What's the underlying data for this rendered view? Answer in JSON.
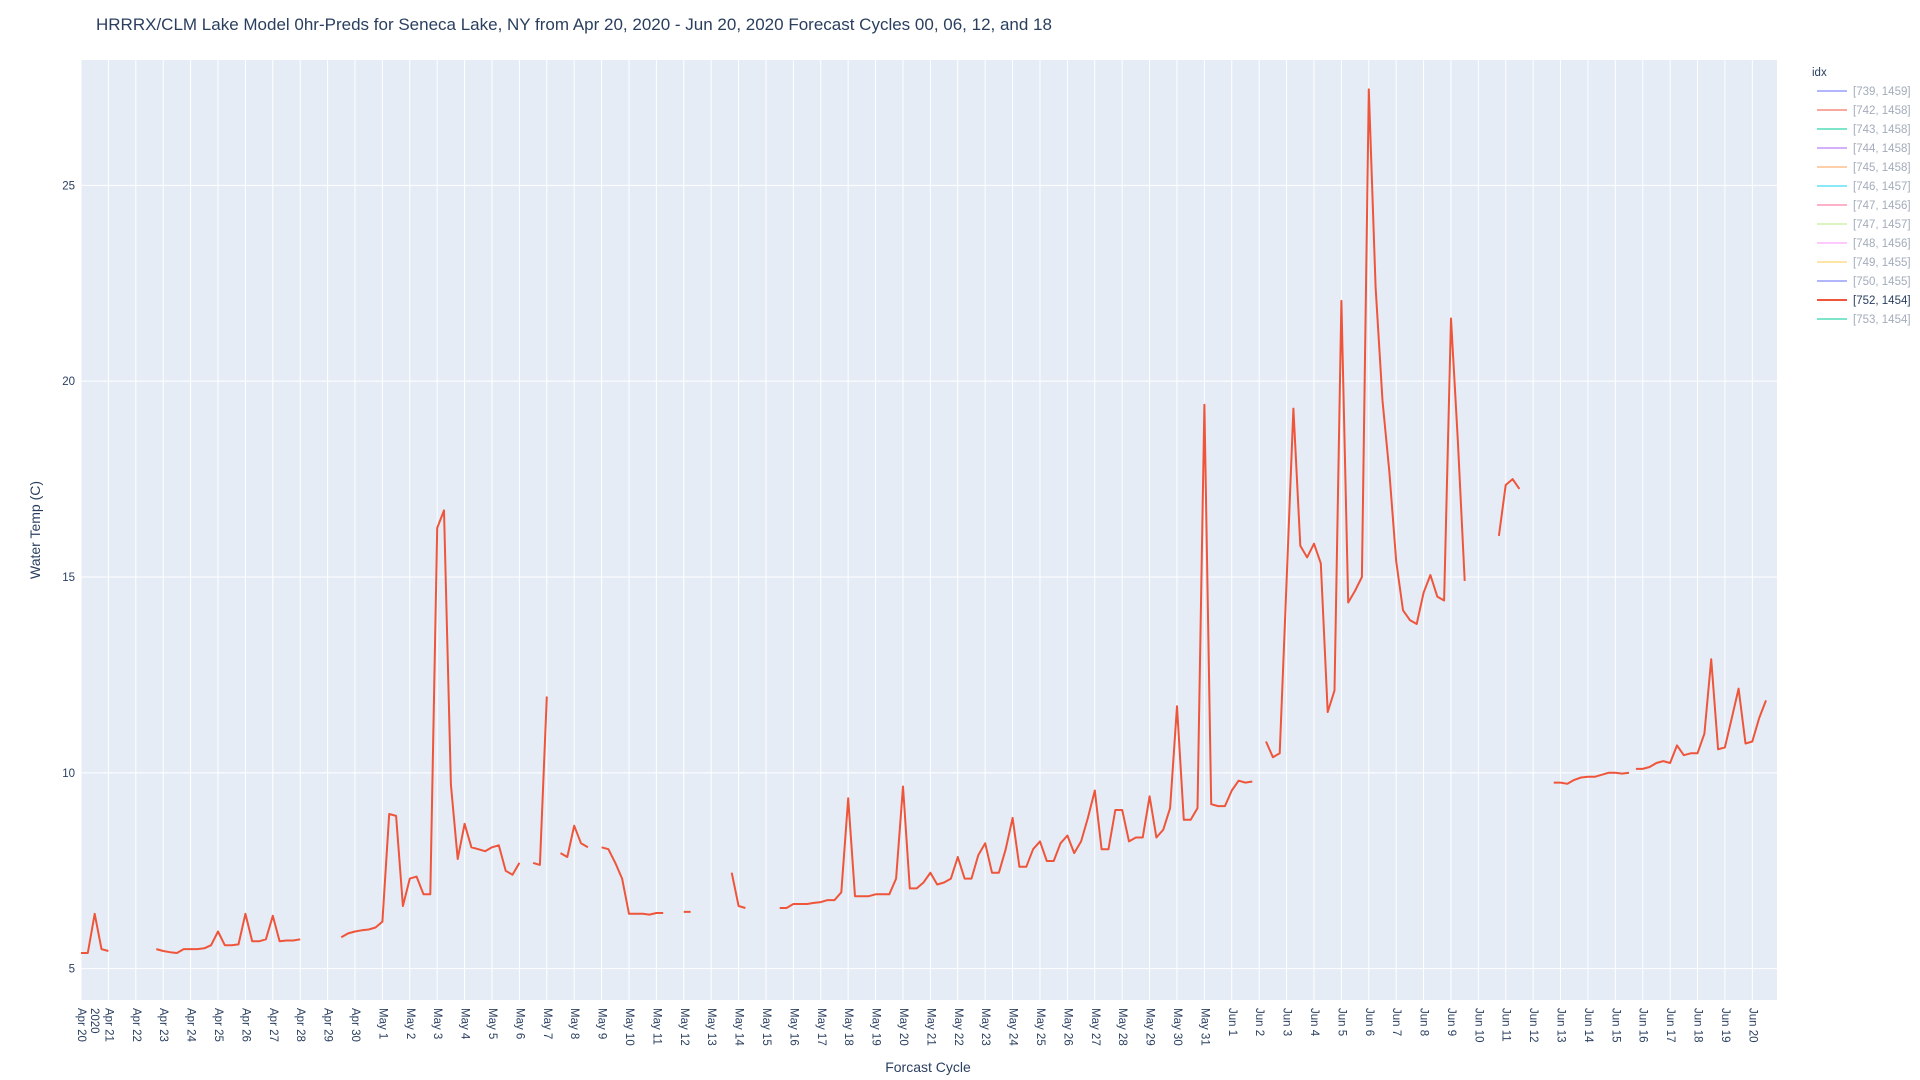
{
  "chart_data": {
    "type": "line",
    "title": "HRRRX/CLM Lake Model 0hr-Preds for Seneca Lake, NY from Apr 20, 2020 - Jun 20, 2020 Forecast Cycles 00, 06, 12, and 18",
    "xlabel": "Forcast Cycle",
    "ylabel": "Water Temp (C)",
    "x_start_date": "2020-04-20",
    "x_range_days": [
      0,
      61.9
    ],
    "ylim": [
      4.2,
      28.2
    ],
    "y_ticks": [
      5,
      10,
      15,
      20,
      25
    ],
    "y_tick_labels": [
      "5",
      "10",
      "15",
      "20",
      "25"
    ],
    "x_tick_labels": [
      "Apr 20\n2020",
      "Apr 21",
      "Apr 22",
      "Apr 23",
      "Apr 24",
      "Apr 25",
      "Apr 26",
      "Apr 27",
      "Apr 28",
      "Apr 29",
      "Apr 30",
      "May 1",
      "May 2",
      "May 3",
      "May 4",
      "May 5",
      "May 6",
      "May 7",
      "May 8",
      "May 9",
      "May 10",
      "May 11",
      "May 12",
      "May 13",
      "May 14",
      "May 15",
      "May 16",
      "May 17",
      "May 18",
      "May 19",
      "May 20",
      "May 21",
      "May 22",
      "May 23",
      "May 24",
      "May 25",
      "May 26",
      "May 27",
      "May 28",
      "May 29",
      "May 30",
      "May 31",
      "Jun 1",
      "Jun 2",
      "Jun 3",
      "Jun 4",
      "Jun 5",
      "Jun 6",
      "Jun 7",
      "Jun 8",
      "Jun 9",
      "Jun 10",
      "Jun 11",
      "Jun 12",
      "Jun 13",
      "Jun 14",
      "Jun 15",
      "Jun 16",
      "Jun 17",
      "Jun 18",
      "Jun 19",
      "Jun 20"
    ],
    "grid": true,
    "legend_title": "idx",
    "legend_position": "top-right",
    "series": [
      {
        "name": "[739, 1459]",
        "color": "#636efa",
        "visible": false,
        "points": []
      },
      {
        "name": "[742, 1458]",
        "color": "#ef553b",
        "visible": false,
        "points": []
      },
      {
        "name": "[743, 1458]",
        "color": "#00cc96",
        "visible": false,
        "points": []
      },
      {
        "name": "[744, 1458]",
        "color": "#ab63fa",
        "visible": false,
        "points": []
      },
      {
        "name": "[745, 1458]",
        "color": "#ffa15a",
        "visible": false,
        "points": []
      },
      {
        "name": "[746, 1457]",
        "color": "#19d3f3",
        "visible": false,
        "points": []
      },
      {
        "name": "[747, 1456]",
        "color": "#ff6692",
        "visible": false,
        "points": []
      },
      {
        "name": "[747, 1457]",
        "color": "#b6e880",
        "visible": false,
        "points": []
      },
      {
        "name": "[748, 1456]",
        "color": "#ff97ff",
        "visible": false,
        "points": []
      },
      {
        "name": "[749, 1455]",
        "color": "#fecb52",
        "visible": false,
        "points": []
      },
      {
        "name": "[750, 1455]",
        "color": "#636efa",
        "visible": false,
        "points": []
      },
      {
        "name": "[752, 1454]",
        "color": "#ef553b",
        "visible": true,
        "points": [
          [
            0.0,
            5.4
          ],
          [
            0.25,
            5.4
          ],
          [
            0.5,
            6.4
          ],
          [
            0.75,
            5.5
          ],
          [
            1.0,
            5.45
          ],
          null,
          [
            2.75,
            5.5
          ],
          [
            3.0,
            5.45
          ],
          [
            3.25,
            5.42
          ],
          [
            3.5,
            5.4
          ],
          [
            3.75,
            5.5
          ],
          [
            4.0,
            5.5
          ],
          [
            4.25,
            5.5
          ],
          [
            4.5,
            5.52
          ],
          [
            4.75,
            5.6
          ],
          [
            5.0,
            5.95
          ],
          [
            5.25,
            5.6
          ],
          [
            5.5,
            5.6
          ],
          [
            5.75,
            5.62
          ],
          [
            6.0,
            6.4
          ],
          [
            6.25,
            5.7
          ],
          [
            6.5,
            5.7
          ],
          [
            6.75,
            5.75
          ],
          [
            7.0,
            6.35
          ],
          [
            7.25,
            5.7
          ],
          [
            7.5,
            5.72
          ],
          [
            7.75,
            5.72
          ],
          [
            8.0,
            5.75
          ],
          null,
          [
            9.5,
            5.8
          ],
          [
            9.75,
            5.9
          ],
          [
            10.0,
            5.95
          ],
          [
            10.25,
            5.98
          ],
          [
            10.5,
            6.0
          ],
          [
            10.75,
            6.05
          ],
          [
            11.0,
            6.2
          ],
          [
            11.25,
            8.95
          ],
          [
            11.5,
            8.9
          ],
          [
            11.75,
            6.6
          ],
          [
            12.0,
            7.3
          ],
          [
            12.25,
            7.35
          ],
          [
            12.5,
            6.9
          ],
          [
            12.75,
            6.9
          ],
          [
            13.0,
            16.25
          ],
          [
            13.25,
            16.7
          ],
          [
            13.5,
            9.7
          ],
          [
            13.75,
            7.8
          ],
          [
            14.0,
            8.7
          ],
          [
            14.25,
            8.1
          ],
          [
            14.5,
            8.05
          ],
          [
            14.75,
            8.0
          ],
          [
            15.0,
            8.1
          ],
          [
            15.25,
            8.15
          ],
          [
            15.5,
            7.5
          ],
          [
            15.75,
            7.4
          ],
          [
            16.0,
            7.7
          ],
          null,
          [
            16.5,
            7.7
          ],
          [
            16.75,
            7.65
          ],
          [
            17.0,
            11.95
          ],
          null,
          [
            17.5,
            7.95
          ],
          [
            17.75,
            7.85
          ],
          [
            18.0,
            8.65
          ],
          [
            18.25,
            8.2
          ],
          [
            18.5,
            8.1
          ],
          null,
          [
            19.0,
            8.1
          ],
          [
            19.25,
            8.05
          ],
          [
            19.5,
            7.7
          ],
          [
            19.75,
            7.3
          ],
          [
            20.0,
            6.4
          ],
          [
            20.25,
            6.4
          ],
          [
            20.5,
            6.4
          ],
          [
            20.75,
            6.38
          ],
          [
            21.0,
            6.42
          ],
          [
            21.25,
            6.42
          ],
          null,
          [
            22.0,
            6.45
          ],
          [
            22.25,
            6.45
          ],
          null,
          [
            23.75,
            7.45
          ],
          [
            24.0,
            6.6
          ],
          [
            24.25,
            6.55
          ],
          null,
          [
            25.5,
            6.55
          ],
          [
            25.75,
            6.55
          ],
          [
            26.0,
            6.65
          ],
          [
            26.25,
            6.65
          ],
          [
            26.5,
            6.65
          ],
          [
            26.75,
            6.68
          ],
          [
            27.0,
            6.7
          ],
          [
            27.25,
            6.75
          ],
          [
            27.5,
            6.75
          ],
          [
            27.75,
            6.95
          ],
          [
            28.0,
            9.35
          ],
          [
            28.25,
            6.85
          ],
          [
            28.5,
            6.85
          ],
          [
            28.75,
            6.85
          ],
          [
            29.0,
            6.9
          ],
          [
            29.25,
            6.9
          ],
          [
            29.5,
            6.9
          ],
          [
            29.75,
            7.3
          ],
          [
            30.0,
            9.65
          ],
          [
            30.25,
            7.05
          ],
          [
            30.5,
            7.05
          ],
          [
            30.75,
            7.2
          ],
          [
            31.0,
            7.45
          ],
          [
            31.25,
            7.15
          ],
          [
            31.5,
            7.2
          ],
          [
            31.75,
            7.3
          ],
          [
            32.0,
            7.85
          ],
          [
            32.25,
            7.3
          ],
          [
            32.5,
            7.3
          ],
          [
            32.75,
            7.9
          ],
          [
            33.0,
            8.2
          ],
          [
            33.25,
            7.45
          ],
          [
            33.5,
            7.45
          ],
          [
            33.75,
            8.05
          ],
          [
            34.0,
            8.85
          ],
          [
            34.25,
            7.6
          ],
          [
            34.5,
            7.6
          ],
          [
            34.75,
            8.05
          ],
          [
            35.0,
            8.25
          ],
          [
            35.25,
            7.75
          ],
          [
            35.5,
            7.75
          ],
          [
            35.75,
            8.2
          ],
          [
            36.0,
            8.4
          ],
          [
            36.25,
            7.95
          ],
          [
            36.5,
            8.25
          ],
          [
            36.75,
            8.85
          ],
          [
            37.0,
            9.55
          ],
          [
            37.25,
            8.05
          ],
          [
            37.5,
            8.05
          ],
          [
            37.75,
            9.05
          ],
          [
            38.0,
            9.05
          ],
          [
            38.25,
            8.25
          ],
          [
            38.5,
            8.35
          ],
          [
            38.75,
            8.35
          ],
          [
            39.0,
            9.4
          ],
          [
            39.25,
            8.35
          ],
          [
            39.5,
            8.55
          ],
          [
            39.75,
            9.1
          ],
          [
            40.0,
            11.7
          ],
          [
            40.25,
            8.8
          ],
          [
            40.5,
            8.8
          ],
          [
            40.75,
            9.1
          ],
          [
            41.0,
            19.4
          ],
          [
            41.25,
            9.2
          ],
          [
            41.5,
            9.15
          ],
          [
            41.75,
            9.15
          ],
          [
            42.0,
            9.55
          ],
          [
            42.25,
            9.8
          ],
          [
            42.5,
            9.75
          ],
          [
            42.75,
            9.78
          ],
          null,
          [
            43.25,
            10.8
          ],
          [
            43.5,
            10.4
          ],
          [
            43.75,
            10.5
          ],
          [
            44.0,
            14.9
          ],
          [
            44.25,
            19.3
          ],
          [
            44.5,
            15.8
          ],
          [
            44.75,
            15.5
          ],
          [
            45.0,
            15.85
          ],
          [
            45.25,
            15.35
          ],
          [
            45.5,
            11.55
          ],
          [
            45.75,
            12.1
          ],
          [
            46.0,
            22.05
          ],
          [
            46.25,
            14.35
          ],
          [
            46.5,
            14.65
          ],
          [
            46.75,
            15.0
          ],
          [
            47.0,
            27.45
          ],
          [
            47.25,
            22.4
          ],
          [
            47.5,
            19.5
          ],
          [
            47.75,
            17.7
          ],
          [
            48.0,
            15.4
          ],
          [
            48.25,
            14.15
          ],
          [
            48.5,
            13.9
          ],
          [
            48.75,
            13.8
          ],
          [
            49.0,
            14.6
          ],
          [
            49.25,
            15.05
          ],
          [
            49.5,
            14.5
          ],
          [
            49.75,
            14.4
          ],
          [
            50.0,
            21.6
          ],
          [
            50.25,
            18.5
          ],
          [
            50.5,
            14.9
          ],
          null,
          [
            51.75,
            16.05
          ],
          [
            52.0,
            17.35
          ],
          [
            52.25,
            17.5
          ],
          [
            52.5,
            17.25
          ],
          null,
          [
            53.75,
            9.75
          ],
          [
            54.0,
            9.75
          ],
          [
            54.25,
            9.72
          ],
          [
            54.5,
            9.82
          ],
          [
            54.75,
            9.88
          ],
          [
            55.0,
            9.9
          ],
          [
            55.25,
            9.9
          ],
          [
            55.5,
            9.95
          ],
          [
            55.75,
            10.0
          ],
          [
            56.0,
            10.0
          ],
          [
            56.25,
            9.98
          ],
          [
            56.5,
            10.0
          ],
          null,
          [
            56.75,
            10.1
          ],
          [
            57.0,
            10.1
          ],
          [
            57.25,
            10.15
          ],
          [
            57.5,
            10.25
          ],
          [
            57.75,
            10.3
          ],
          [
            58.0,
            10.25
          ],
          [
            58.25,
            10.7
          ],
          [
            58.5,
            10.45
          ],
          [
            58.75,
            10.5
          ],
          [
            59.0,
            10.5
          ],
          [
            59.25,
            11.0
          ],
          [
            59.5,
            12.9
          ],
          [
            59.75,
            10.6
          ],
          [
            60.0,
            10.65
          ],
          [
            60.25,
            11.4
          ],
          [
            60.5,
            12.15
          ],
          [
            60.75,
            10.75
          ],
          [
            61.0,
            10.8
          ],
          [
            61.25,
            11.4
          ],
          [
            61.5,
            11.85
          ]
        ]
      },
      {
        "name": "[753, 1454]",
        "color": "#00cc96",
        "visible": false,
        "points": []
      }
    ]
  }
}
